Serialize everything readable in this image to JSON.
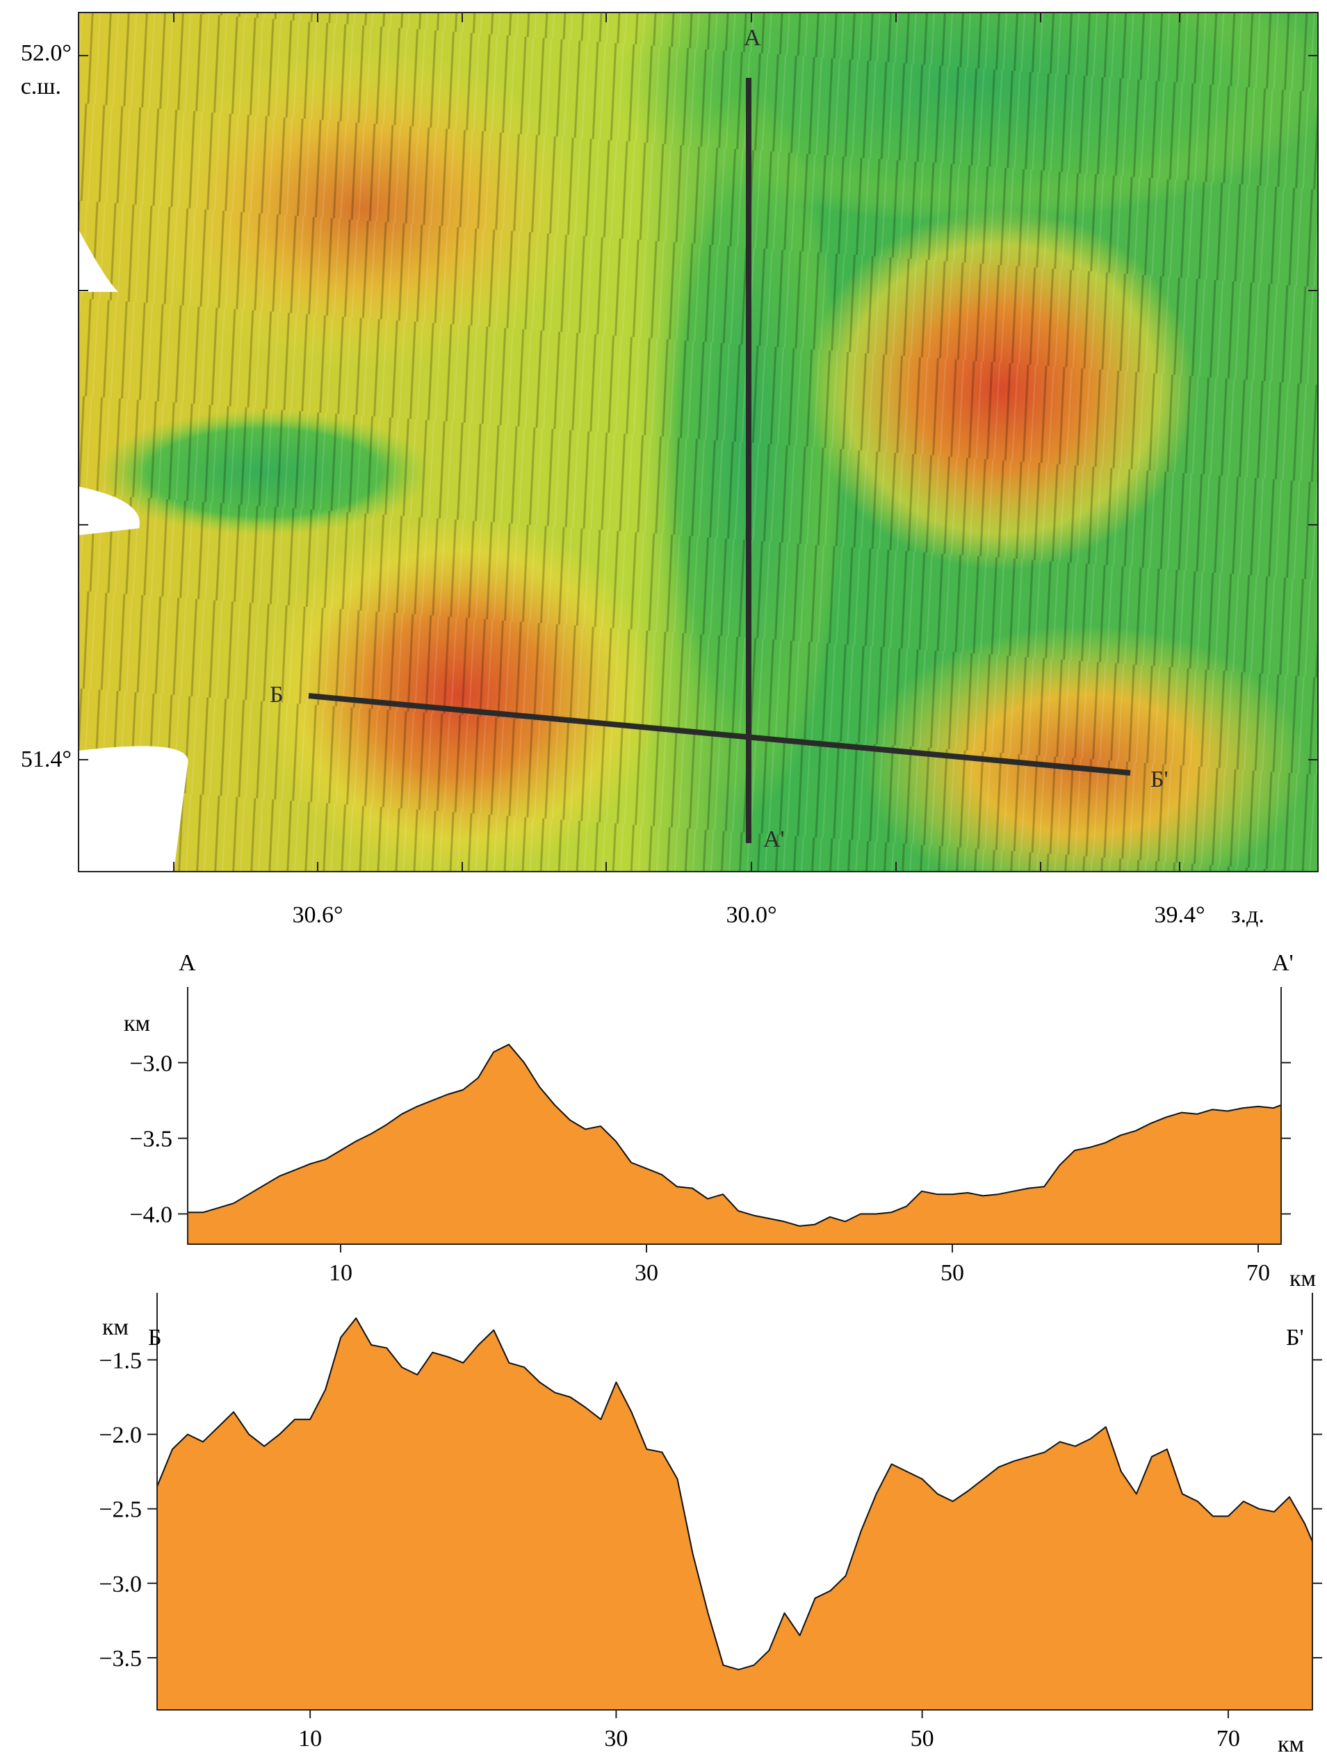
{
  "map": {
    "lat_top": "52.0°",
    "lat_top_suffix": "с.ш.",
    "lat_bottom": "51.4°",
    "lon_labels": [
      "30.6°",
      "30.0°",
      "39.4°"
    ],
    "lon_suffix": "з.д.",
    "profile_a": {
      "start": "А",
      "end": "А'"
    },
    "profile_b": {
      "start": "Б",
      "end": "Б'"
    },
    "colors": {
      "deep": "#29a64a",
      "mid": "#e8e230",
      "shallow": "#d4402a",
      "line": "#2a2a2a"
    }
  },
  "chart_data": [
    {
      "type": "area",
      "start_label": "А",
      "end_label": "А'",
      "ylabel": "км",
      "x_unit": "км",
      "x_ticks": [
        10,
        30,
        50,
        70
      ],
      "y_ticks": [
        -3.0,
        -3.5,
        -4.0
      ],
      "xlim": [
        0,
        71.5
      ],
      "ylim": [
        -4.2,
        -2.5
      ],
      "fill": "#f5962e",
      "x": [
        0,
        1,
        2,
        3,
        4,
        5,
        6,
        7,
        8,
        9,
        10,
        11,
        12,
        13,
        14,
        15,
        16,
        17,
        18,
        19,
        20,
        21,
        22,
        23,
        24,
        25,
        26,
        27,
        28,
        29,
        30,
        31,
        32,
        33,
        34,
        35,
        36,
        37,
        38,
        39,
        40,
        41,
        42,
        43,
        44,
        45,
        46,
        47,
        48,
        49,
        50,
        51,
        52,
        53,
        54,
        55,
        56,
        57,
        58,
        59,
        60,
        61,
        62,
        63,
        64,
        65,
        66,
        67,
        68,
        69,
        70,
        71,
        71.5
      ],
      "y": [
        -3.99,
        -3.99,
        -3.96,
        -3.93,
        -3.87,
        -3.81,
        -3.75,
        -3.71,
        -3.67,
        -3.64,
        -3.58,
        -3.52,
        -3.47,
        -3.41,
        -3.34,
        -3.29,
        -3.25,
        -3.21,
        -3.18,
        -3.1,
        -2.93,
        -2.88,
        -3.0,
        -3.16,
        -3.28,
        -3.38,
        -3.44,
        -3.42,
        -3.52,
        -3.66,
        -3.7,
        -3.74,
        -3.82,
        -3.83,
        -3.9,
        -3.87,
        -3.98,
        -4.01,
        -4.03,
        -4.05,
        -4.08,
        -4.07,
        -4.02,
        -4.05,
        -4.0,
        -4.0,
        -3.99,
        -3.95,
        -3.85,
        -3.87,
        -3.87,
        -3.86,
        -3.88,
        -3.87,
        -3.85,
        -3.83,
        -3.82,
        -3.68,
        -3.58,
        -3.56,
        -3.53,
        -3.48,
        -3.45,
        -3.4,
        -3.36,
        -3.33,
        -3.34,
        -3.31,
        -3.32,
        -3.3,
        -3.29,
        -3.3,
        -3.28
      ]
    },
    {
      "type": "area",
      "start_label": "Б",
      "end_label": "Б'",
      "ylabel": "км",
      "x_unit": "км",
      "x_ticks": [
        10,
        30,
        50,
        70
      ],
      "y_ticks": [
        -1.5,
        -2.0,
        -2.5,
        -3.0,
        -3.5
      ],
      "xlim": [
        0,
        75.5
      ],
      "ylim": [
        -3.85,
        -1.05
      ],
      "fill": "#f5962e",
      "x": [
        0,
        1,
        2,
        3,
        4,
        5,
        6,
        7,
        8,
        9,
        10,
        11,
        12,
        13,
        14,
        15,
        16,
        17,
        18,
        19,
        20,
        21,
        22,
        23,
        24,
        25,
        26,
        27,
        28,
        29,
        30,
        31,
        32,
        33,
        34,
        35,
        36,
        37,
        38,
        39,
        40,
        41,
        42,
        43,
        44,
        45,
        46,
        47,
        48,
        49,
        50,
        51,
        52,
        53,
        54,
        55,
        56,
        57,
        58,
        59,
        60,
        61,
        62,
        63,
        64,
        65,
        66,
        67,
        68,
        69,
        70,
        71,
        72,
        73,
        74,
        75,
        75.5
      ],
      "y": [
        -2.35,
        -2.1,
        -2.0,
        -2.05,
        -1.95,
        -1.85,
        -2.0,
        -2.08,
        -2.0,
        -1.9,
        -1.9,
        -1.7,
        -1.35,
        -1.22,
        -1.4,
        -1.42,
        -1.55,
        -1.6,
        -1.45,
        -1.48,
        -1.52,
        -1.4,
        -1.3,
        -1.52,
        -1.55,
        -1.65,
        -1.72,
        -1.75,
        -1.82,
        -1.9,
        -1.65,
        -1.85,
        -2.1,
        -2.12,
        -2.3,
        -2.8,
        -3.2,
        -3.55,
        -3.58,
        -3.55,
        -3.45,
        -3.2,
        -3.35,
        -3.1,
        -3.05,
        -2.95,
        -2.65,
        -2.4,
        -2.2,
        -2.25,
        -2.3,
        -2.4,
        -2.45,
        -2.38,
        -2.3,
        -2.22,
        -2.18,
        -2.15,
        -2.12,
        -2.05,
        -2.08,
        -2.03,
        -1.95,
        -2.25,
        -2.4,
        -2.15,
        -2.1,
        -2.4,
        -2.45,
        -2.55,
        -2.55,
        -2.45,
        -2.5,
        -2.52,
        -2.42,
        -2.6,
        -2.72
      ]
    }
  ]
}
